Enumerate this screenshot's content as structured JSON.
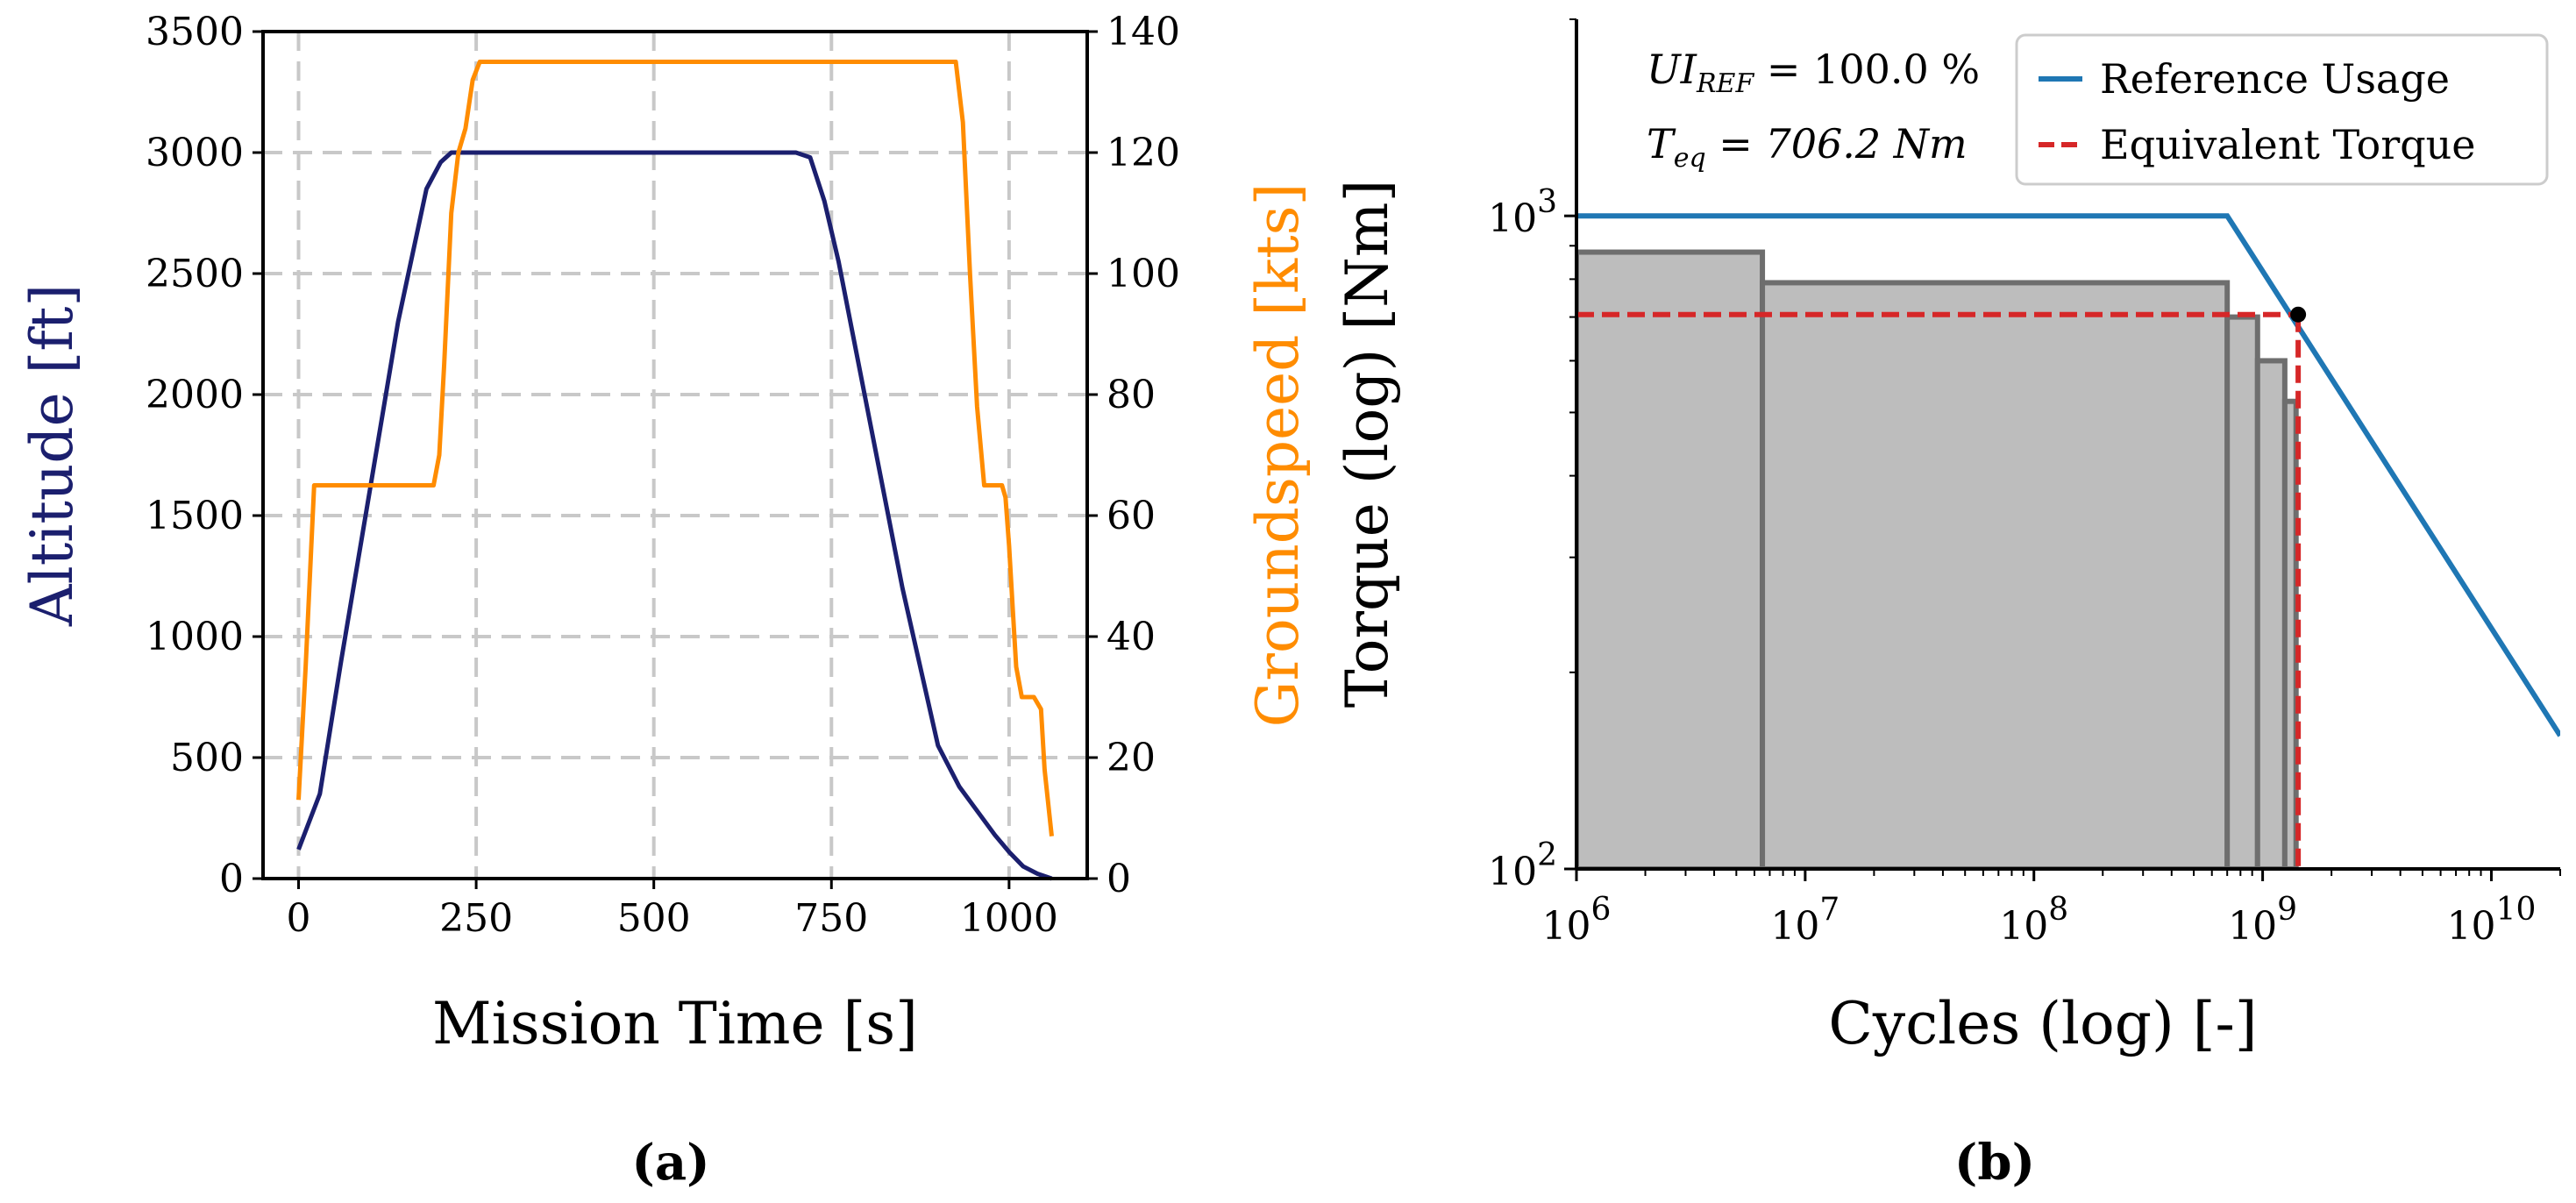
{
  "chart_data": [
    {
      "type": "line",
      "panel_caption": "(a)",
      "xlabel": "Mission Time [s]",
      "ylabel_left": "Altitude [ft]",
      "ylabel_right": "Groundspeed [kts]",
      "xlim": [
        -50,
        1110
      ],
      "ylim_left": [
        0,
        3500
      ],
      "ylim_right": [
        0,
        140
      ],
      "xticks": [
        0,
        250,
        500,
        750,
        1000
      ],
      "xtick_labels": [
        "0",
        "250",
        "500",
        "750",
        "1000"
      ],
      "yticks_left": [
        0,
        500,
        1000,
        1500,
        2000,
        2500,
        3000,
        3500
      ],
      "ytick_labels_left": [
        "0",
        "500",
        "1000",
        "1500",
        "2000",
        "2500",
        "3000",
        "3500"
      ],
      "yticks_right": [
        0,
        20,
        40,
        60,
        80,
        100,
        120,
        140
      ],
      "ytick_labels_right": [
        "0",
        "20",
        "40",
        "60",
        "80",
        "100",
        "120",
        "140"
      ],
      "grid": true,
      "colors": {
        "altitude": "#1b1f6e",
        "groundspeed": "#ff8c00",
        "grid": "#c8c8c8"
      },
      "series": [
        {
          "name": "Altitude",
          "axis": "left",
          "x": [
            0,
            30,
            60,
            100,
            140,
            180,
            200,
            215,
            230,
            250,
            300,
            400,
            500,
            600,
            700,
            720,
            740,
            760,
            780,
            800,
            850,
            900,
            930,
            950,
            980,
            1000,
            1020,
            1040,
            1060
          ],
          "y": [
            120,
            350,
            900,
            1600,
            2300,
            2850,
            2960,
            3000,
            3000,
            3000,
            3000,
            3000,
            3000,
            3000,
            3000,
            2980,
            2800,
            2550,
            2250,
            1950,
            1200,
            550,
            380,
            300,
            180,
            110,
            50,
            20,
            0
          ]
        },
        {
          "name": "Groundspeed",
          "axis": "right",
          "x": [
            0,
            10,
            22,
            30,
            100,
            190,
            198,
            205,
            215,
            225,
            235,
            245,
            255,
            265,
            500,
            900,
            925,
            935,
            945,
            955,
            965,
            990,
            995,
            1000,
            1005,
            1010,
            1018,
            1025,
            1035,
            1045,
            1050,
            1060
          ],
          "y": [
            13,
            35,
            65,
            65,
            65,
            65,
            70,
            85,
            110,
            120,
            124,
            132,
            135,
            135,
            135,
            135,
            135,
            125,
            100,
            78,
            65,
            65,
            63,
            55,
            45,
            35,
            30,
            30,
            30,
            28,
            18,
            7
          ]
        }
      ]
    },
    {
      "type": "line",
      "panel_caption": "(b)",
      "xlabel": "Cycles (log) [-]",
      "ylabel": "Torque (log) [Nm]",
      "xscale": "log",
      "yscale": "log",
      "xlim": [
        1000000,
        20000000000
      ],
      "ylim": [
        100,
        2000
      ],
      "xtick_labels": [
        {
          "base": "10",
          "exp": "6",
          "value": 1000000
        },
        {
          "base": "10",
          "exp": "7",
          "value": 10000000
        },
        {
          "base": "10",
          "exp": "8",
          "value": 100000000
        },
        {
          "base": "10",
          "exp": "9",
          "value": 1000000000
        },
        {
          "base": "10",
          "exp": "10",
          "value": 10000000000
        }
      ],
      "ytick_labels": [
        {
          "base": "10",
          "exp": "2",
          "value": 100
        },
        {
          "base": "10",
          "exp": "3",
          "value": 1000
        }
      ],
      "annotations": [
        {
          "lhs": "UI",
          "sub": "REF",
          "rhs": " = 100.0 %"
        },
        {
          "lhs": "T",
          "sub": "eq",
          "rhs": " = 706.2 Nm"
        }
      ],
      "legend": {
        "location": "top-right",
        "entries": [
          {
            "label": "Reference Usage",
            "color": "#1f77b4",
            "style": "solid"
          },
          {
            "label": "Equivalent Torque",
            "color": "#d62728",
            "style": "dashed"
          }
        ]
      },
      "series": [
        {
          "name": "Reference Usage",
          "x": [
            1000000,
            700000000,
            20000000000
          ],
          "y": [
            1000,
            1000,
            160
          ]
        }
      ],
      "equivalent_torque": {
        "x_end": 1430000000,
        "torque": 706.2
      },
      "equivalent_point": {
        "x": 1430000000,
        "y": 706.2
      },
      "histogram_bars": [
        {
          "x_start": 1000000,
          "x_end": 6500000,
          "torque": 880
        },
        {
          "x_start": 6500000,
          "x_end": 700000000,
          "torque": 790
        },
        {
          "x_start": 700000000,
          "x_end": 950000000,
          "torque": 700
        },
        {
          "x_start": 950000000,
          "x_end": 1250000000,
          "torque": 600
        },
        {
          "x_start": 1250000000,
          "x_end": 1400000000,
          "torque": 520
        }
      ],
      "colors": {
        "bar_fill": "#bdbdbd",
        "bar_edge": "#6e6e6e",
        "reference": "#1f77b4",
        "equivalent": "#d62728"
      }
    }
  ]
}
